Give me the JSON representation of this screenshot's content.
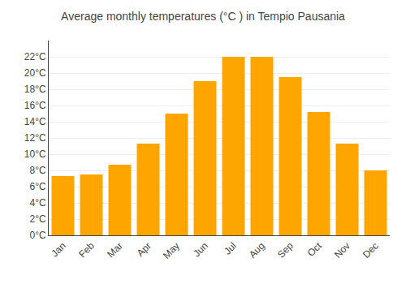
{
  "chart_data": {
    "type": "bar",
    "title": "Average monthly temperatures (°C ) in Tempio Pausania",
    "categories": [
      "Jan",
      "Feb",
      "Mar",
      "Apr",
      "May",
      "Jun",
      "Jul",
      "Aug",
      "Sep",
      "Oct",
      "Nov",
      "Dec"
    ],
    "values": [
      7.3,
      7.5,
      8.7,
      11.3,
      15.0,
      19.0,
      22.0,
      22.0,
      19.5,
      15.2,
      11.3,
      8.0
    ],
    "color": "#FFA500",
    "ylim": [
      0,
      24
    ],
    "yticks": [
      {
        "value": 0,
        "label": "0°C"
      },
      {
        "value": 2,
        "label": "2°C"
      },
      {
        "value": 4,
        "label": "4°C"
      },
      {
        "value": 6,
        "label": "6°C"
      },
      {
        "value": 8,
        "label": "8°C"
      },
      {
        "value": 10,
        "label": "10°C"
      },
      {
        "value": 12,
        "label": "12°C"
      },
      {
        "value": 14,
        "label": "14°C"
      },
      {
        "value": 16,
        "label": "16°C"
      },
      {
        "value": 18,
        "label": "18°C"
      },
      {
        "value": 20,
        "label": "20°C"
      },
      {
        "value": 22,
        "label": "22°C"
      }
    ],
    "grid": true
  }
}
